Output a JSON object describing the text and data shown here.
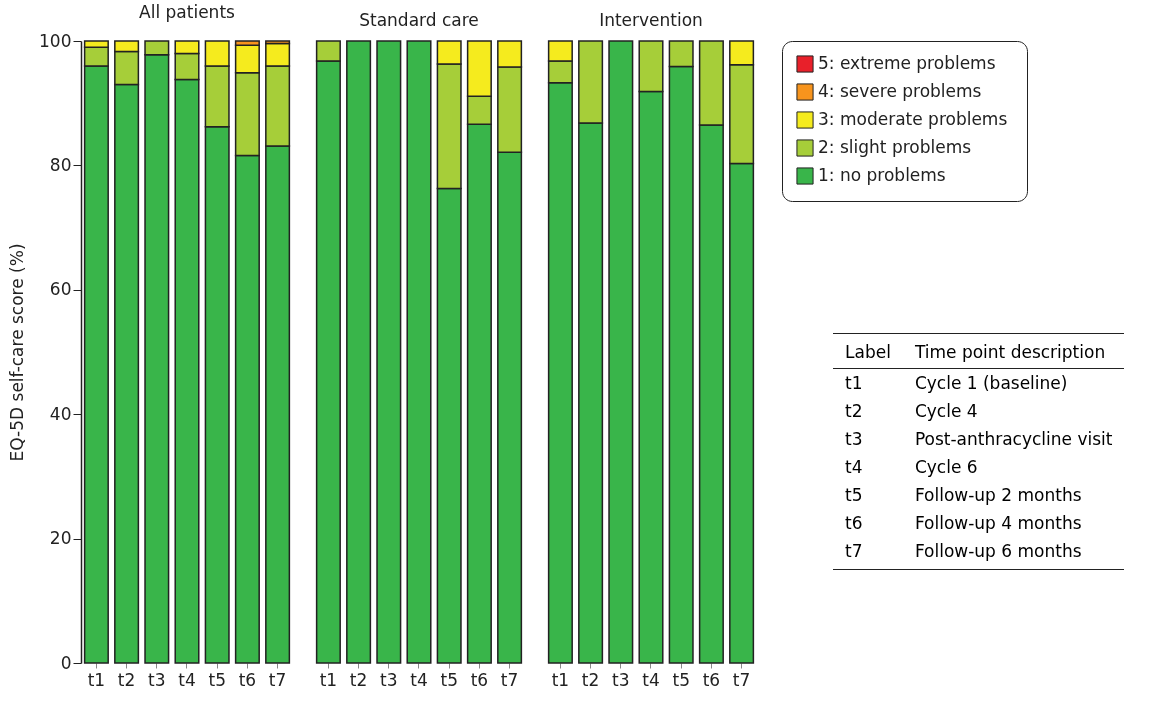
{
  "chart_data": [
    {
      "type": "bar",
      "title": "All patients",
      "ylabel": "EQ-5D self-care score (%)",
      "categories": [
        "t1",
        "t2",
        "t3",
        "t4",
        "t5",
        "t6",
        "t7"
      ],
      "stacked": true,
      "ylim": [
        0,
        100
      ],
      "yticks": [
        0,
        20,
        40,
        60,
        80,
        100
      ],
      "grid": false,
      "series": [
        {
          "color": "#39b54a",
          "values": [
            96,
            93,
            97.8,
            93.8,
            86.2,
            81.6,
            83.1
          ]
        },
        {
          "color": "#a6ce39",
          "values": [
            3,
            5.3,
            2.2,
            4.2,
            9.8,
            13.3,
            12.9
          ]
        },
        {
          "color": "#f5eb1e",
          "values": [
            1,
            1.7,
            null,
            2,
            4,
            4.4,
            3.6
          ]
        },
        {
          "color": "#f7941d",
          "values": [
            null,
            null,
            null,
            null,
            null,
            0.7,
            0.4
          ]
        }
      ]
    },
    {
      "type": "bar",
      "title": "Standard care",
      "categories": [
        "t1",
        "t2",
        "t3",
        "t4",
        "t5",
        "t6",
        "t7"
      ],
      "stacked": true,
      "ylim": [
        0,
        100
      ],
      "yticks": [
        0,
        20,
        40,
        60,
        80,
        100
      ],
      "tick_labels": "x",
      "grid": false,
      "series": [
        {
          "color": "#39b54a",
          "values": [
            96.8,
            100,
            100,
            100,
            76.3,
            86.6,
            82.1
          ]
        },
        {
          "color": "#a6ce39",
          "values": [
            3.2,
            null,
            null,
            null,
            20,
            4.5,
            13.7
          ]
        },
        {
          "color": "#f5eb1e",
          "values": [
            null,
            null,
            null,
            null,
            3.7,
            8.9,
            4.2
          ]
        }
      ]
    },
    {
      "type": "bar",
      "title": "Intervention",
      "categories": [
        "t1",
        "t2",
        "t3",
        "t4",
        "t5",
        "t6",
        "t7"
      ],
      "stacked": true,
      "ylim": [
        0,
        100
      ],
      "yticks": [
        0,
        20,
        40,
        60,
        80,
        100
      ],
      "tick_labels": "x",
      "grid": false,
      "legend": "right",
      "annotations": [
        "Label",
        "Time point description",
        "t1",
        "Cycle 1 (baseline)",
        "t2",
        "Cycle 4",
        "t3",
        "Post-anthracycline visit",
        "t4",
        "Cycle 6",
        "t5",
        "Follow-up 2 months",
        "t6",
        "Follow-up 4 months",
        "t7",
        "Follow-up 6 months"
      ],
      "series": [
        {
          "name": "1:  no problems",
          "color": "#39b54a",
          "values": [
            93.3,
            86.8,
            100,
            91.9,
            95.9,
            86.5,
            80.3
          ]
        },
        {
          "name": "2:  slight problems",
          "color": "#a6ce39",
          "values": [
            3.5,
            13.2,
            null,
            8.1,
            4.1,
            13.5,
            15.9
          ]
        },
        {
          "name": "3:  moderate problems",
          "color": "#f5eb1e",
          "values": [
            3.2,
            null,
            null,
            null,
            null,
            null,
            3.8
          ]
        },
        {
          "name": "4:  severe problems",
          "color": "#f7941d",
          "values": [
            null,
            null,
            null,
            null,
            null,
            null,
            null
          ]
        },
        {
          "name": "5:  extreme problems",
          "color": "#e8202a",
          "values": [
            null,
            null,
            null,
            null,
            null,
            null,
            null
          ]
        }
      ]
    }
  ]
}
